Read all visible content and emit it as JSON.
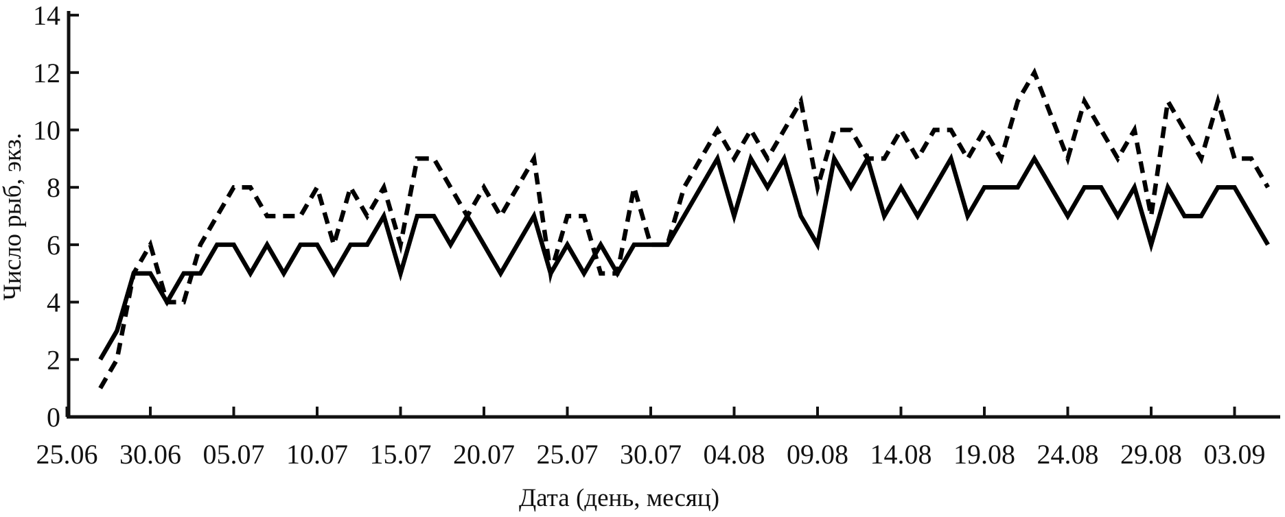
{
  "chart_data": {
    "type": "line",
    "title": "",
    "xlabel": "Дата (день, месяц)",
    "ylabel": "Число рыб, экз.",
    "ylim": [
      0,
      14
    ],
    "y_ticks": [
      0,
      2,
      4,
      6,
      8,
      10,
      12,
      14
    ],
    "x_tick_labels": [
      "25.06",
      "30.06",
      "05.07",
      "10.07",
      "15.07",
      "20.07",
      "25.07",
      "30.07",
      "04.08",
      "09.08",
      "14.08",
      "19.08",
      "24.08",
      "29.08",
      "03.09"
    ],
    "x_tick_interval_days": 5,
    "grid": false,
    "legend_position": "none",
    "line_color": "#000000",
    "background_color": "#ffffff",
    "x": [
      "27.06",
      "28.06",
      "29.06",
      "30.06",
      "01.07",
      "02.07",
      "03.07",
      "04.07",
      "05.07",
      "06.07",
      "07.07",
      "08.07",
      "09.07",
      "10.07",
      "11.07",
      "12.07",
      "13.07",
      "14.07",
      "15.07",
      "16.07",
      "17.07",
      "18.07",
      "19.07",
      "20.07",
      "21.07",
      "22.07",
      "23.07",
      "24.07",
      "25.07",
      "26.07",
      "27.07",
      "28.07",
      "29.07",
      "30.07",
      "31.07",
      "01.08",
      "02.08",
      "03.08",
      "04.08",
      "05.08",
      "06.08",
      "07.08",
      "08.08",
      "09.08",
      "10.08",
      "11.08",
      "12.08",
      "13.08",
      "14.08",
      "15.08",
      "16.08",
      "17.08",
      "18.08",
      "19.08",
      "20.08",
      "21.08",
      "22.08",
      "23.08",
      "24.08",
      "25.08",
      "26.08",
      "27.08",
      "28.08",
      "29.08",
      "30.08",
      "31.08",
      "01.09",
      "02.09",
      "03.09",
      "04.09",
      "05.09"
    ],
    "series": [
      {
        "name": "solid",
        "style": "solid",
        "color": "#000000",
        "values": [
          2,
          3,
          5,
          5,
          4,
          5,
          5,
          6,
          6,
          5,
          6,
          5,
          6,
          6,
          5,
          6,
          6,
          7,
          5,
          7,
          7,
          6,
          7,
          6,
          5,
          6,
          7,
          5,
          6,
          5,
          6,
          5,
          6,
          6,
          6,
          7,
          8,
          9,
          7,
          9,
          8,
          9,
          7,
          6,
          9,
          8,
          9,
          7,
          8,
          7,
          8,
          9,
          7,
          8,
          8,
          8,
          9,
          8,
          7,
          8,
          8,
          7,
          8,
          6,
          8,
          7,
          7,
          8,
          8,
          7,
          6
        ]
      },
      {
        "name": "dashed",
        "style": "dashed",
        "color": "#000000",
        "values": [
          1,
          2,
          5,
          6,
          4,
          4,
          6,
          7,
          8,
          8,
          7,
          7,
          7,
          8,
          6,
          8,
          7,
          8,
          6,
          9,
          9,
          8,
          7,
          8,
          7,
          8,
          9,
          5,
          7,
          7,
          5,
          5,
          8,
          6,
          6,
          8,
          9,
          10,
          9,
          10,
          9,
          10,
          11,
          8,
          10,
          10,
          9,
          9,
          10,
          9,
          10,
          10,
          9,
          10,
          9,
          11,
          12,
          10.5,
          9,
          11,
          10,
          9,
          10,
          7,
          11,
          10,
          9,
          11,
          9,
          9,
          8
        ]
      }
    ]
  }
}
